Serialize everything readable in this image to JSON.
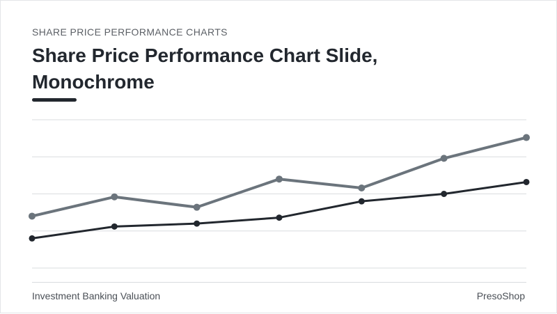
{
  "header": {
    "eyebrow": "SHARE PRICE PERFORMANCE CHARTS",
    "title": "Share Price Performance Chart Slide, Monochrome"
  },
  "footer": {
    "left": "Investment Banking Valuation",
    "right": "PresoShop"
  },
  "colors": {
    "text_dark": "#22272e",
    "series_light": "#6b747c",
    "series_dark": "#22272e",
    "gridline": "#d9dcdf"
  },
  "chart_data": {
    "type": "line",
    "x": [
      1,
      2,
      3,
      4,
      5,
      6,
      7
    ],
    "ylim": [
      0,
      100
    ],
    "grid": true,
    "legend": "none",
    "series": [
      {
        "color": "#6b747c",
        "values": [
          35,
          48,
          41,
          60,
          54,
          74,
          88
        ]
      },
      {
        "color": "#22272e",
        "values": [
          20,
          28,
          30,
          34,
          45,
          50,
          58
        ]
      }
    ]
  }
}
